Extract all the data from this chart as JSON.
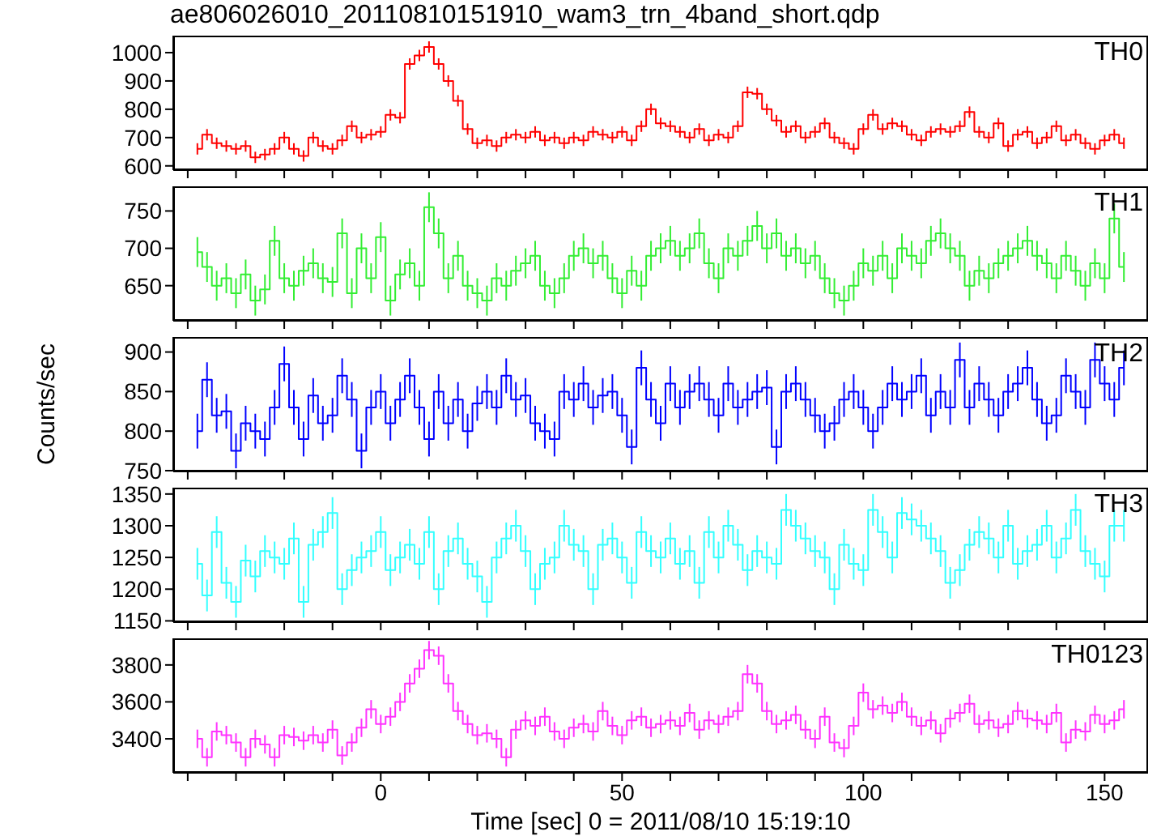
{
  "chart_data": [
    {
      "type": "step",
      "title": "ae806026010_20110810151910_wam3_trn_4band_short.qdp",
      "tick_labels": "y",
      "x": [
        -38,
        -36,
        -34,
        -32,
        -30,
        -28,
        -26,
        -24,
        -22,
        -20,
        -18,
        -16,
        -14,
        -12,
        -10,
        -8,
        -6,
        -4,
        -2,
        0,
        2,
        4,
        6,
        8,
        10,
        12,
        14,
        16,
        18,
        20,
        22,
        24,
        26,
        28,
        30,
        32,
        34,
        36,
        38,
        40,
        42,
        44,
        46,
        48,
        50,
        52,
        54,
        56,
        58,
        60,
        62,
        64,
        66,
        68,
        70,
        72,
        74,
        76,
        78,
        80,
        82,
        84,
        86,
        88,
        90,
        92,
        94,
        96,
        98,
        100,
        102,
        104,
        106,
        108,
        110,
        112,
        114,
        116,
        118,
        120,
        122,
        124,
        126,
        128,
        130,
        132,
        134,
        136,
        138,
        140,
        142,
        144,
        146,
        148,
        150,
        152,
        154
      ],
      "xlim": [
        -43,
        159
      ],
      "xticks": [
        {
          "value": -40,
          "label": null
        },
        {
          "value": -30,
          "label": null
        },
        {
          "value": -20,
          "label": null
        },
        {
          "value": -10,
          "label": null
        },
        {
          "value": 0,
          "label": null
        },
        {
          "value": 10,
          "label": null
        },
        {
          "value": 20,
          "label": null
        },
        {
          "value": 30,
          "label": null
        },
        {
          "value": 40,
          "label": null
        },
        {
          "value": 50,
          "label": null
        },
        {
          "value": 60,
          "label": null
        },
        {
          "value": 70,
          "label": null
        },
        {
          "value": 80,
          "label": null
        },
        {
          "value": 90,
          "label": null
        },
        {
          "value": 100,
          "label": null
        },
        {
          "value": 110,
          "label": null
        },
        {
          "value": 120,
          "label": null
        },
        {
          "value": 130,
          "label": null
        },
        {
          "value": 140,
          "label": null
        },
        {
          "value": 150,
          "label": null
        }
      ],
      "ylim": [
        585,
        1060
      ],
      "yticks": [
        600,
        700,
        800,
        900,
        1000
      ],
      "series": [
        {
          "name": "TH0",
          "color": "#ff0000",
          "values": [
            660,
            710,
            680,
            670,
            660,
            670,
            630,
            640,
            660,
            700,
            660,
            635,
            700,
            670,
            660,
            690,
            740,
            700,
            710,
            720,
            780,
            770,
            960,
            990,
            1020,
            960,
            900,
            830,
            730,
            680,
            690,
            670,
            700,
            710,
            700,
            720,
            690,
            700,
            680,
            700,
            690,
            720,
            710,
            700,
            720,
            690,
            740,
            800,
            750,
            740,
            720,
            700,
            730,
            690,
            710,
            700,
            740,
            860,
            855,
            800,
            760,
            720,
            740,
            700,
            720,
            750,
            700,
            680,
            660,
            730,
            780,
            730,
            750,
            740,
            710,
            690,
            720,
            730,
            720,
            740,
            790,
            720,
            700,
            750,
            670,
            710,
            720,
            680,
            700,
            740,
            690,
            710,
            680,
            660,
            690,
            710,
            680
          ],
          "errors": [
            20,
            20,
            20,
            20,
            20,
            20,
            20,
            20,
            20,
            20,
            20,
            20,
            20,
            20,
            20,
            20,
            20,
            20,
            20,
            20,
            20,
            20,
            20,
            20,
            20,
            20,
            20,
            20,
            20,
            20,
            20,
            20,
            20,
            20,
            20,
            20,
            20,
            20,
            20,
            20,
            20,
            20,
            20,
            20,
            20,
            20,
            20,
            20,
            20,
            20,
            20,
            20,
            20,
            20,
            20,
            20,
            20,
            20,
            20,
            20,
            20,
            20,
            20,
            20,
            20,
            20,
            20,
            20,
            20,
            20,
            20,
            20,
            20,
            20,
            20,
            20,
            20,
            20,
            20,
            20,
            20,
            20,
            20,
            20,
            20,
            20,
            20,
            20,
            20,
            20,
            20,
            20,
            20,
            20,
            20,
            20,
            20
          ]
        }
      ]
    },
    {
      "type": "step",
      "tick_labels": "y",
      "x": [
        -38,
        -36,
        -34,
        -32,
        -30,
        -28,
        -26,
        -24,
        -22,
        -20,
        -18,
        -16,
        -14,
        -12,
        -10,
        -8,
        -6,
        -4,
        -2,
        0,
        2,
        4,
        6,
        8,
        10,
        12,
        14,
        16,
        18,
        20,
        22,
        24,
        26,
        28,
        30,
        32,
        34,
        36,
        38,
        40,
        42,
        44,
        46,
        48,
        50,
        52,
        54,
        56,
        58,
        60,
        62,
        64,
        66,
        68,
        70,
        72,
        74,
        76,
        78,
        80,
        82,
        84,
        86,
        88,
        90,
        92,
        94,
        96,
        98,
        100,
        102,
        104,
        106,
        108,
        110,
        112,
        114,
        116,
        118,
        120,
        122,
        124,
        126,
        128,
        130,
        132,
        134,
        136,
        138,
        140,
        142,
        144,
        146,
        148,
        150,
        152,
        154
      ],
      "xlim": [
        -43,
        159
      ],
      "xticks": [
        {
          "value": -40,
          "label": null
        },
        {
          "value": -30,
          "label": null
        },
        {
          "value": -20,
          "label": null
        },
        {
          "value": -10,
          "label": null
        },
        {
          "value": 0,
          "label": null
        },
        {
          "value": 10,
          "label": null
        },
        {
          "value": 20,
          "label": null
        },
        {
          "value": 30,
          "label": null
        },
        {
          "value": 40,
          "label": null
        },
        {
          "value": 50,
          "label": null
        },
        {
          "value": 60,
          "label": null
        },
        {
          "value": 70,
          "label": null
        },
        {
          "value": 80,
          "label": null
        },
        {
          "value": 90,
          "label": null
        },
        {
          "value": 100,
          "label": null
        },
        {
          "value": 110,
          "label": null
        },
        {
          "value": 120,
          "label": null
        },
        {
          "value": 130,
          "label": null
        },
        {
          "value": 140,
          "label": null
        },
        {
          "value": 150,
          "label": null
        }
      ],
      "ylim": [
        603,
        783
      ],
      "yticks": [
        650,
        700,
        750
      ],
      "series": [
        {
          "name": "TH1",
          "color": "#33ee33",
          "values": [
            695,
            675,
            650,
            660,
            640,
            665,
            630,
            645,
            710,
            660,
            650,
            670,
            680,
            660,
            655,
            720,
            640,
            700,
            660,
            715,
            630,
            665,
            680,
            650,
            755,
            720,
            660,
            690,
            650,
            640,
            630,
            660,
            650,
            670,
            680,
            690,
            650,
            640,
            660,
            690,
            700,
            680,
            690,
            660,
            640,
            670,
            650,
            690,
            700,
            710,
            690,
            700,
            720,
            680,
            660,
            700,
            690,
            710,
            730,
            700,
            720,
            690,
            700,
            680,
            690,
            660,
            640,
            630,
            650,
            680,
            670,
            690,
            660,
            700,
            690,
            680,
            710,
            720,
            700,
            690,
            650,
            670,
            660,
            680,
            690,
            700,
            710,
            690,
            680,
            660,
            690,
            670,
            650,
            680,
            660,
            740,
            675
          ],
          "errors": [
            20,
            20,
            20,
            20,
            20,
            20,
            20,
            20,
            20,
            20,
            20,
            20,
            20,
            20,
            20,
            20,
            20,
            20,
            20,
            20,
            20,
            20,
            20,
            20,
            20,
            20,
            20,
            20,
            20,
            20,
            20,
            20,
            20,
            20,
            20,
            20,
            20,
            20,
            20,
            20,
            20,
            20,
            20,
            20,
            20,
            20,
            20,
            20,
            20,
            20,
            20,
            20,
            20,
            20,
            20,
            20,
            20,
            20,
            20,
            20,
            20,
            20,
            20,
            20,
            20,
            20,
            20,
            20,
            20,
            20,
            20,
            20,
            20,
            20,
            20,
            20,
            20,
            20,
            20,
            20,
            20,
            20,
            20,
            20,
            20,
            20,
            20,
            20,
            20,
            20,
            20,
            20,
            20,
            20,
            20,
            20,
            20
          ]
        }
      ]
    },
    {
      "type": "step",
      "tick_labels": "y",
      "ylabel": "Counts/sec",
      "x": [
        -38,
        -36,
        -34,
        -32,
        -30,
        -28,
        -26,
        -24,
        -22,
        -20,
        -18,
        -16,
        -14,
        -12,
        -10,
        -8,
        -6,
        -4,
        -2,
        0,
        2,
        4,
        6,
        8,
        10,
        12,
        14,
        16,
        18,
        20,
        22,
        24,
        26,
        28,
        30,
        32,
        34,
        36,
        38,
        40,
        42,
        44,
        46,
        48,
        50,
        52,
        54,
        56,
        58,
        60,
        62,
        64,
        66,
        68,
        70,
        72,
        74,
        76,
        78,
        80,
        82,
        84,
        86,
        88,
        90,
        92,
        94,
        96,
        98,
        100,
        102,
        104,
        106,
        108,
        110,
        112,
        114,
        116,
        118,
        120,
        122,
        124,
        126,
        128,
        130,
        132,
        134,
        136,
        138,
        140,
        142,
        144,
        146,
        148,
        150,
        152,
        154
      ],
      "xlim": [
        -43,
        159
      ],
      "xticks": [
        {
          "value": -40,
          "label": null
        },
        {
          "value": -30,
          "label": null
        },
        {
          "value": -20,
          "label": null
        },
        {
          "value": -10,
          "label": null
        },
        {
          "value": 0,
          "label": null
        },
        {
          "value": 10,
          "label": null
        },
        {
          "value": 20,
          "label": null
        },
        {
          "value": 30,
          "label": null
        },
        {
          "value": 40,
          "label": null
        },
        {
          "value": 50,
          "label": null
        },
        {
          "value": 60,
          "label": null
        },
        {
          "value": 70,
          "label": null
        },
        {
          "value": 80,
          "label": null
        },
        {
          "value": 90,
          "label": null
        },
        {
          "value": 100,
          "label": null
        },
        {
          "value": 110,
          "label": null
        },
        {
          "value": 120,
          "label": null
        },
        {
          "value": 130,
          "label": null
        },
        {
          "value": 140,
          "label": null
        },
        {
          "value": 150,
          "label": null
        }
      ],
      "ylim": [
        749,
        919
      ],
      "yticks": [
        750,
        800,
        850,
        900
      ],
      "series": [
        {
          "name": "TH2",
          "color": "#0000ff",
          "values": [
            800,
            865,
            820,
            825,
            775,
            810,
            800,
            790,
            830,
            885,
            830,
            790,
            845,
            810,
            820,
            870,
            840,
            775,
            830,
            850,
            810,
            840,
            870,
            830,
            790,
            850,
            810,
            840,
            800,
            835,
            850,
            830,
            870,
            840,
            845,
            810,
            800,
            790,
            850,
            840,
            860,
            830,
            845,
            850,
            820,
            780,
            880,
            840,
            810,
            860,
            830,
            850,
            860,
            840,
            820,
            860,
            830,
            840,
            850,
            855,
            780,
            850,
            860,
            840,
            820,
            800,
            810,
            840,
            850,
            830,
            800,
            830,
            860,
            840,
            850,
            870,
            820,
            850,
            830,
            890,
            830,
            860,
            840,
            820,
            850,
            860,
            880,
            840,
            810,
            820,
            870,
            850,
            830,
            890,
            860,
            840,
            880
          ],
          "errors": [
            22,
            22,
            22,
            22,
            22,
            22,
            22,
            22,
            22,
            22,
            22,
            22,
            22,
            22,
            22,
            22,
            22,
            22,
            22,
            22,
            22,
            22,
            22,
            22,
            22,
            22,
            22,
            22,
            22,
            22,
            22,
            22,
            22,
            22,
            22,
            22,
            22,
            22,
            22,
            22,
            22,
            22,
            22,
            22,
            22,
            22,
            22,
            22,
            22,
            22,
            22,
            22,
            22,
            22,
            22,
            22,
            22,
            22,
            22,
            22,
            22,
            22,
            22,
            22,
            22,
            22,
            22,
            22,
            22,
            22,
            22,
            22,
            22,
            22,
            22,
            22,
            22,
            22,
            22,
            22,
            22,
            22,
            22,
            22,
            22,
            22,
            22,
            22,
            22,
            22,
            22,
            22,
            22,
            22,
            22,
            22,
            22
          ]
        }
      ]
    },
    {
      "type": "step",
      "tick_labels": "y",
      "x": [
        -38,
        -36,
        -34,
        -32,
        -30,
        -28,
        -26,
        -24,
        -22,
        -20,
        -18,
        -16,
        -14,
        -12,
        -10,
        -8,
        -6,
        -4,
        -2,
        0,
        2,
        4,
        6,
        8,
        10,
        12,
        14,
        16,
        18,
        20,
        22,
        24,
        26,
        28,
        30,
        32,
        34,
        36,
        38,
        40,
        42,
        44,
        46,
        48,
        50,
        52,
        54,
        56,
        58,
        60,
        62,
        64,
        66,
        68,
        70,
        72,
        74,
        76,
        78,
        80,
        82,
        84,
        86,
        88,
        90,
        92,
        94,
        96,
        98,
        100,
        102,
        104,
        106,
        108,
        110,
        112,
        114,
        116,
        118,
        120,
        122,
        124,
        126,
        128,
        130,
        132,
        134,
        136,
        138,
        140,
        142,
        144,
        146,
        148,
        150,
        152,
        154
      ],
      "xlim": [
        -43,
        159
      ],
      "xticks": [
        {
          "value": -40,
          "label": null
        },
        {
          "value": -30,
          "label": null
        },
        {
          "value": -20,
          "label": null
        },
        {
          "value": -10,
          "label": null
        },
        {
          "value": 0,
          "label": null
        },
        {
          "value": 10,
          "label": null
        },
        {
          "value": 20,
          "label": null
        },
        {
          "value": 30,
          "label": null
        },
        {
          "value": 40,
          "label": null
        },
        {
          "value": 50,
          "label": null
        },
        {
          "value": 60,
          "label": null
        },
        {
          "value": 70,
          "label": null
        },
        {
          "value": 80,
          "label": null
        },
        {
          "value": 90,
          "label": null
        },
        {
          "value": 100,
          "label": null
        },
        {
          "value": 110,
          "label": null
        },
        {
          "value": 120,
          "label": null
        },
        {
          "value": 130,
          "label": null
        },
        {
          "value": 140,
          "label": null
        },
        {
          "value": 150,
          "label": null
        }
      ],
      "ylim": [
        1148,
        1360
      ],
      "yticks": [
        1150,
        1200,
        1250,
        1300,
        1350
      ],
      "series": [
        {
          "name": "TH3",
          "color": "#33ffff",
          "values": [
            1240,
            1190,
            1290,
            1210,
            1180,
            1245,
            1220,
            1260,
            1250,
            1240,
            1280,
            1180,
            1270,
            1290,
            1320,
            1200,
            1230,
            1250,
            1260,
            1290,
            1230,
            1250,
            1270,
            1240,
            1290,
            1200,
            1260,
            1280,
            1240,
            1220,
            1180,
            1250,
            1280,
            1300,
            1260,
            1200,
            1240,
            1250,
            1300,
            1270,
            1260,
            1200,
            1270,
            1280,
            1250,
            1210,
            1290,
            1260,
            1250,
            1280,
            1240,
            1260,
            1210,
            1290,
            1250,
            1300,
            1270,
            1230,
            1260,
            1250,
            1240,
            1325,
            1300,
            1280,
            1260,
            1250,
            1200,
            1270,
            1240,
            1230,
            1325,
            1290,
            1250,
            1320,
            1310,
            1300,
            1280,
            1260,
            1210,
            1230,
            1270,
            1290,
            1280,
            1250,
            1300,
            1240,
            1260,
            1270,
            1300,
            1250,
            1280,
            1325,
            1260,
            1240,
            1220,
            1300,
            1300
          ],
          "errors": [
            25,
            25,
            25,
            25,
            25,
            25,
            25,
            25,
            25,
            25,
            25,
            25,
            25,
            25,
            25,
            25,
            25,
            25,
            25,
            25,
            25,
            25,
            25,
            25,
            25,
            25,
            25,
            25,
            25,
            25,
            25,
            25,
            25,
            25,
            25,
            25,
            25,
            25,
            25,
            25,
            25,
            25,
            25,
            25,
            25,
            25,
            25,
            25,
            25,
            25,
            25,
            25,
            25,
            25,
            25,
            25,
            25,
            25,
            25,
            25,
            25,
            25,
            25,
            25,
            25,
            25,
            25,
            25,
            25,
            25,
            25,
            25,
            25,
            25,
            25,
            25,
            25,
            25,
            25,
            25,
            25,
            25,
            25,
            25,
            25,
            25,
            25,
            25,
            25,
            25,
            25,
            25,
            25,
            25,
            25,
            25,
            25
          ]
        }
      ]
    },
    {
      "type": "step",
      "xlabel": "Time [sec] 0 = 2011/08/10 15:19:10",
      "x": [
        -38,
        -36,
        -34,
        -32,
        -30,
        -28,
        -26,
        -24,
        -22,
        -20,
        -18,
        -16,
        -14,
        -12,
        -10,
        -8,
        -6,
        -4,
        -2,
        0,
        2,
        4,
        6,
        8,
        10,
        12,
        14,
        16,
        18,
        20,
        22,
        24,
        26,
        28,
        30,
        32,
        34,
        36,
        38,
        40,
        42,
        44,
        46,
        48,
        50,
        52,
        54,
        56,
        58,
        60,
        62,
        64,
        66,
        68,
        70,
        72,
        74,
        76,
        78,
        80,
        82,
        84,
        86,
        88,
        90,
        92,
        94,
        96,
        98,
        100,
        102,
        104,
        106,
        108,
        110,
        112,
        114,
        116,
        118,
        120,
        122,
        124,
        126,
        128,
        130,
        132,
        134,
        136,
        138,
        140,
        142,
        144,
        146,
        148,
        150,
        152,
        154
      ],
      "xlim": [
        -43,
        159
      ],
      "xticks": [
        {
          "value": -40,
          "label": null
        },
        {
          "value": -30,
          "label": null
        },
        {
          "value": -20,
          "label": null
        },
        {
          "value": -10,
          "label": null
        },
        0,
        {
          "value": 10,
          "label": null
        },
        {
          "value": 20,
          "label": null
        },
        {
          "value": 30,
          "label": null
        },
        {
          "value": 40,
          "label": null
        },
        50,
        {
          "value": 60,
          "label": null
        },
        {
          "value": 70,
          "label": null
        },
        {
          "value": 80,
          "label": null
        },
        {
          "value": 90,
          "label": null
        },
        100,
        {
          "value": 110,
          "label": null
        },
        {
          "value": 120,
          "label": null
        },
        {
          "value": 130,
          "label": null
        },
        {
          "value": 140,
          "label": null
        },
        150
      ],
      "ylim": [
        3216,
        3944
      ],
      "yticks": [
        3400,
        3600,
        3800
      ],
      "series": [
        {
          "name": "TH0123",
          "color": "#ff33ff",
          "values": [
            3400,
            3300,
            3440,
            3420,
            3380,
            3300,
            3400,
            3370,
            3300,
            3420,
            3410,
            3390,
            3420,
            3380,
            3450,
            3310,
            3380,
            3460,
            3560,
            3480,
            3520,
            3600,
            3700,
            3780,
            3880,
            3850,
            3700,
            3550,
            3480,
            3420,
            3430,
            3400,
            3300,
            3450,
            3500,
            3470,
            3520,
            3440,
            3400,
            3460,
            3480,
            3440,
            3550,
            3470,
            3420,
            3500,
            3520,
            3460,
            3480,
            3500,
            3470,
            3540,
            3450,
            3500,
            3480,
            3520,
            3550,
            3750,
            3700,
            3550,
            3480,
            3500,
            3530,
            3450,
            3400,
            3520,
            3380,
            3350,
            3470,
            3650,
            3560,
            3580,
            3540,
            3600,
            3520,
            3470,
            3500,
            3430,
            3510,
            3540,
            3590,
            3480,
            3500,
            3460,
            3480,
            3550,
            3510,
            3500,
            3480,
            3540,
            3380,
            3450,
            3440,
            3530,
            3480,
            3500,
            3560
          ],
          "errors": [
            50,
            50,
            50,
            50,
            50,
            50,
            50,
            50,
            50,
            50,
            50,
            50,
            50,
            50,
            50,
            50,
            50,
            50,
            50,
            50,
            50,
            50,
            50,
            50,
            50,
            50,
            50,
            50,
            50,
            50,
            50,
            50,
            50,
            50,
            50,
            50,
            50,
            50,
            50,
            50,
            50,
            50,
            50,
            50,
            50,
            50,
            50,
            50,
            50,
            50,
            50,
            50,
            50,
            50,
            50,
            50,
            50,
            50,
            50,
            50,
            50,
            50,
            50,
            50,
            50,
            50,
            50,
            50,
            50,
            50,
            50,
            50,
            50,
            50,
            50,
            50,
            50,
            50,
            50,
            50,
            50,
            50,
            50,
            50,
            50,
            50,
            50,
            50,
            50,
            50,
            50,
            50,
            50,
            50,
            50,
            50,
            50
          ]
        }
      ]
    }
  ]
}
